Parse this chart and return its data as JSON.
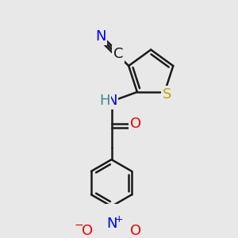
{
  "bg_color": "#e8e8e8",
  "bond_color": "#1a1a1a",
  "line_width": 1.8,
  "dbo": 0.018,
  "atom_colors": {
    "N": "#0000ee",
    "O": "#ee0000",
    "S": "#bbaa00",
    "C": "#1a1a1a",
    "H": "#3a8a8a"
  },
  "fs": 13,
  "fs_small": 9
}
